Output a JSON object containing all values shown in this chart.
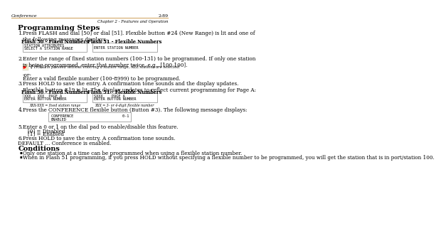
{
  "header_left": "Conference",
  "header_right": "2-89",
  "header_sub": "Chapter 2 - Features and Operation",
  "header_line_color": "#d4a96a",
  "bg_color": "#ffffff",
  "title": "Programming Steps",
  "box1_title": "Flash 50 - Fixed Numbers",
  "box1_line1": "STATION ATTRIBUTES",
  "box1_line2": "SELECT A STATION RANGE",
  "box2_title": "Flash 51 - Flexible Numbers",
  "box2_line1": "ENTER STATION NUMBER",
  "note_italic": "If HOLD is pressed without entering a station range, ALL stations are selected.",
  "or_text": "-or-",
  "box3_title": "Flash 50 - Fixed Numbers",
  "box3_line1": "XXX - XXX  PAGE A",
  "box3_line2": "ENTER BUTTON NUMBER",
  "box3_caption": "XXX-XXX = fixed station range",
  "box4_title": "Flash 51 - Flexible Numbers",
  "box4_line1": "SXXX    PAGE A",
  "box4_line2": "ENTER BUTTON NUMBER",
  "box4_caption": "XXX = 3- or 4-digit flexible number",
  "conf_box_line1": "CONFERENCE                      0-1",
  "conf_box_line2": "ENABLED",
  "step5_text": "Enter a 0 or 1 on the dial pad to enable/disable this feature.",
  "step5_sub1": "[0] = Disabled",
  "step5_sub2": "[1] = Enabled",
  "step6_text": "Press HOLD to save the entry. A confirmation tone sounds.",
  "default_text": "DEFAULT … Conference is enabled.",
  "conditions_title": "Conditions",
  "cond1": "Only one station at a time can be programmed when using a flexible station number.",
  "cond2": "When in Flash 51 programming, if you press HOLD without specifying a flexible number to be programmed, you will get the station that is in port/station 100.",
  "font_color": "#000000",
  "box_border_color": "#888888",
  "body_font_size": 5.2
}
